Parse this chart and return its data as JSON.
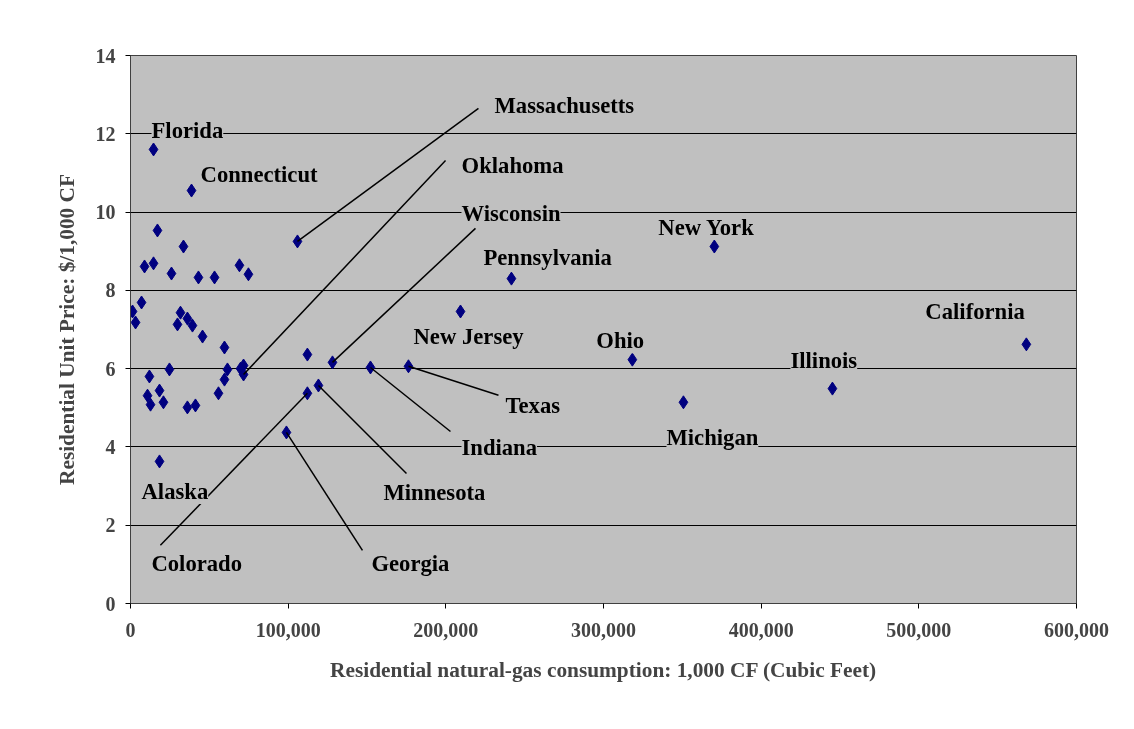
{
  "chart_data": {
    "type": "scatter",
    "xlabel": "Residential natural-gas consumption: 1,000 CF (Cubic Feet)",
    "ylabel": "Residential Unit Price: $/1,000 CF",
    "x": [
      14600,
      38700,
      105900,
      370300,
      241600,
      209300,
      568200,
      318300,
      176300,
      152200,
      128100,
      112200,
      119200,
      112200,
      98900,
      350700,
      445200,
      17100,
      33600,
      8900,
      14600,
      26000,
      43100,
      53300,
      69100,
      74800,
      7000,
      1300,
      3200,
      31700,
      29800,
      36100,
      39300,
      45700,
      59600,
      61500,
      71700,
      71700,
      69800,
      59600,
      55800,
      24700,
      12000,
      10800,
      18400,
      12700,
      20900,
      36100,
      41200,
      18400
    ],
    "series": [
      {
        "color": "#000080",
        "values": [
          11.6,
          10.55,
          9.25,
          9.12,
          8.3,
          7.46,
          6.62,
          6.23,
          6.06,
          6.03,
          6.16,
          6.36,
          5.57,
          5.37,
          4.37,
          5.14,
          5.49,
          9.53,
          9.12,
          8.61,
          8.69,
          8.43,
          8.33,
          8.33,
          8.64,
          8.41,
          7.69,
          7.46,
          7.18,
          7.43,
          7.13,
          7.28,
          7.1,
          6.82,
          6.54,
          5.98,
          6.08,
          5.85,
          6.0,
          5.72,
          5.37,
          5.98,
          5.8,
          5.31,
          5.44,
          5.08,
          5.14,
          5.01,
          5.06,
          3.63
        ]
      }
    ],
    "xlim": [
      0,
      600000
    ],
    "ylim": [
      0,
      14
    ],
    "xticks": [
      0,
      {
        "value": 100000,
        "label": "100,000"
      },
      {
        "value": 200000,
        "label": "200,000"
      },
      {
        "value": 300000,
        "label": "300,000"
      },
      {
        "value": 400000,
        "label": "400,000"
      },
      {
        "value": 500000,
        "label": "500,000"
      },
      {
        "value": 600000,
        "label": "600,000"
      }
    ],
    "yticks": [
      0,
      2,
      4,
      6,
      8,
      10,
      12,
      14
    ],
    "grid": "y",
    "marker": "diamond",
    "annotations": [
      {
        "text": "Florida",
        "x": 14600,
        "y": 11.6
      },
      {
        "text": "Connecticut",
        "x": 38700,
        "y": 10.55
      },
      {
        "text": "Massachusetts",
        "x": 105900,
        "y": 9.25
      },
      {
        "text": "Oklahoma",
        "x": 71700,
        "y": 5.85
      },
      {
        "text": "Wisconsin",
        "x": 128100,
        "y": 6.16
      },
      {
        "text": "Pennsylvania",
        "x": 241600,
        "y": 8.3
      },
      {
        "text": "New York",
        "x": 370300,
        "y": 9.12
      },
      {
        "text": "New Jersey",
        "x": 209300,
        "y": 7.46
      },
      {
        "text": "Ohio",
        "x": 318300,
        "y": 6.23
      },
      {
        "text": "California",
        "x": 568200,
        "y": 6.62
      },
      {
        "text": "Illinois",
        "x": 445200,
        "y": 5.49
      },
      {
        "text": "Michigan",
        "x": 350700,
        "y": 5.14
      },
      {
        "text": "Texas",
        "x": 176300,
        "y": 6.06
      },
      {
        "text": "Indiana",
        "x": 152200,
        "y": 6.03
      },
      {
        "text": "Minnesota",
        "x": 119200,
        "y": 5.57
      },
      {
        "text": "Georgia",
        "x": 98900,
        "y": 4.37
      },
      {
        "text": "Colorado",
        "x": 112200,
        "y": 5.37
      },
      {
        "text": "Alaska",
        "x": 18400,
        "y": 3.63
      }
    ]
  }
}
